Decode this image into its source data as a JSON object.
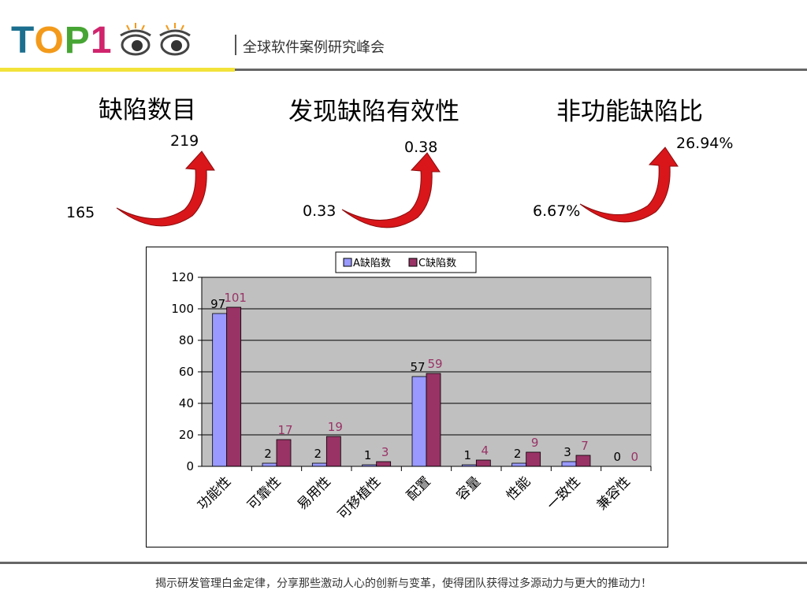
{
  "header": {
    "logo_text": {
      "t": "T",
      "o": "O",
      "p": "P",
      "one": "1"
    },
    "subtitle": "全球软件案例研究峰会"
  },
  "metrics": [
    {
      "title": "缺陷数目",
      "from": "165",
      "to": "219"
    },
    {
      "title": "发现缺陷有效性",
      "from": "0.33",
      "to": "0.38"
    },
    {
      "title": "非功能缺陷比",
      "from": "6.67%",
      "to": "26.94%"
    }
  ],
  "colors": {
    "series_a": "#9999ff",
    "series_c": "#993366",
    "plot_bg": "#c0c0c0",
    "arrow": "#d9161a",
    "logo_yellow": "#f2e23a"
  },
  "chart_data": {
    "type": "bar",
    "categories": [
      "功能性",
      "可靠性",
      "易用性",
      "可移植性",
      "配置",
      "容量",
      "性能",
      "一致性",
      "兼容性"
    ],
    "series": [
      {
        "name": "A缺陷数",
        "values": [
          97,
          2,
          2,
          1,
          57,
          1,
          2,
          3,
          0
        ]
      },
      {
        "name": "C缺陷数",
        "values": [
          101,
          17,
          19,
          3,
          59,
          4,
          9,
          7,
          0
        ]
      }
    ],
    "ylim": [
      0,
      120
    ],
    "yticks": [
      0,
      20,
      40,
      60,
      80,
      100,
      120
    ],
    "grid": true,
    "legend": "top"
  },
  "footer": "揭示研发管理白金定律，分享那些激动人心的创新与变革，使得团队获得过多源动力与更大的推动力！"
}
